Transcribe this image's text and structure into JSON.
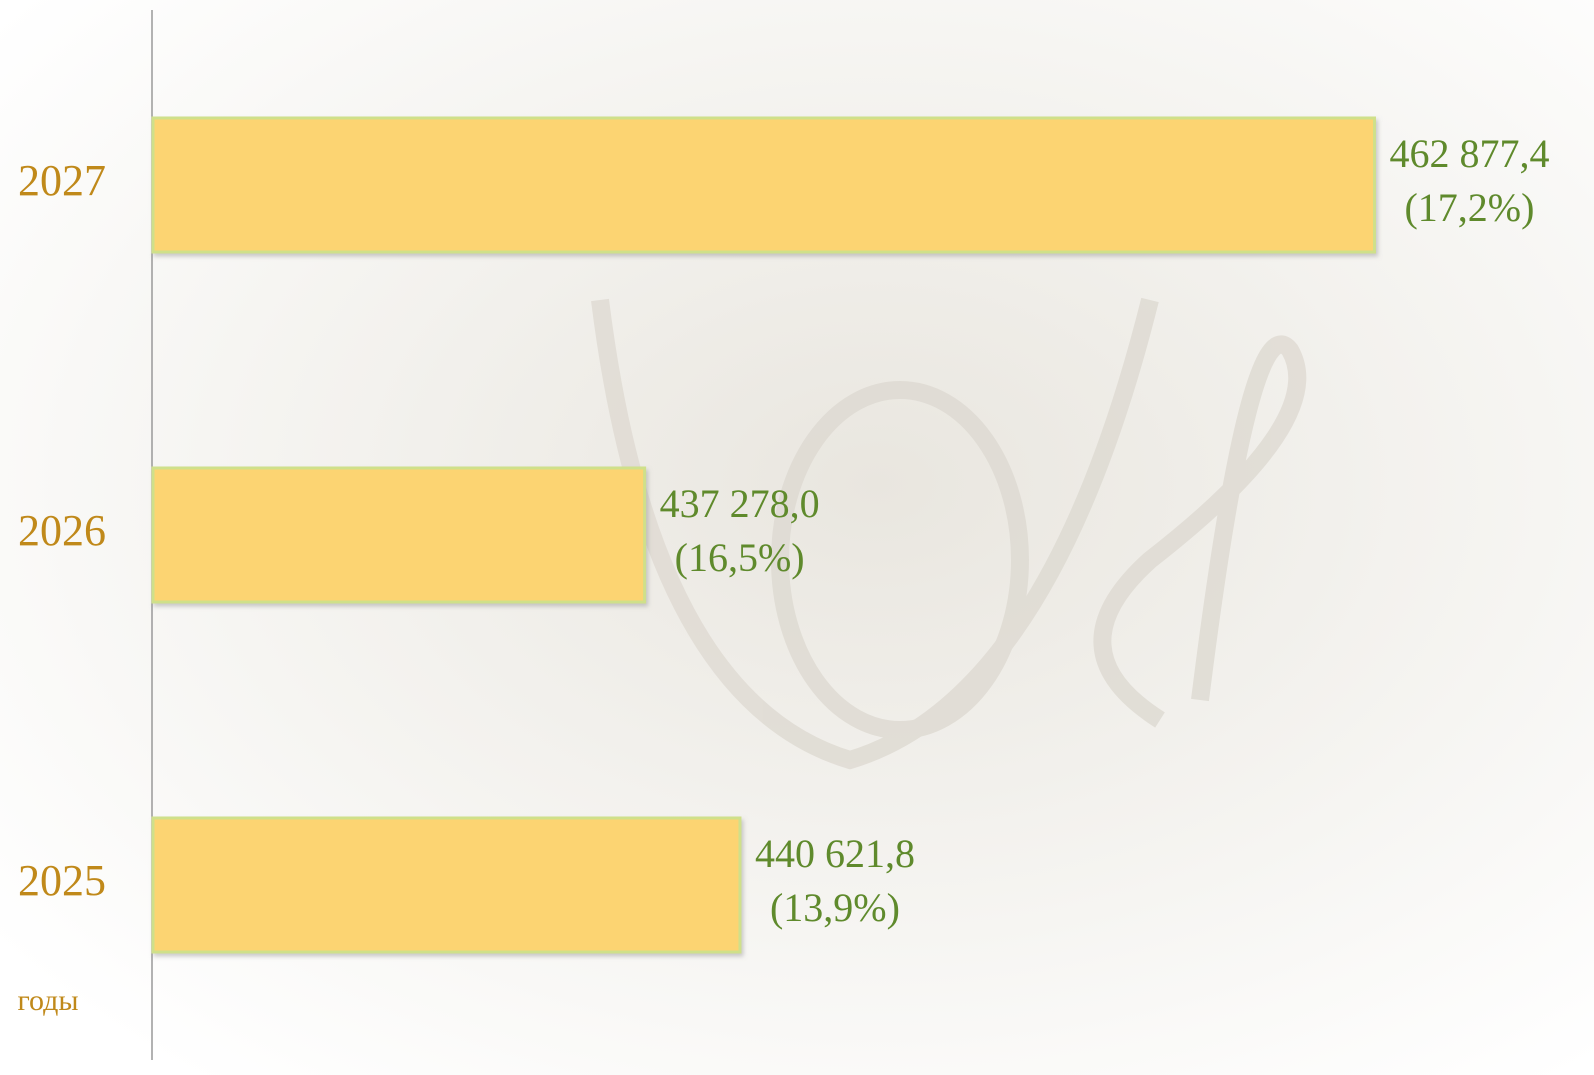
{
  "chart_data": {
    "type": "barh",
    "categories": [
      "2025",
      "2026",
      "2027"
    ],
    "values": [
      440621.8,
      437278.0,
      462877.4
    ],
    "value_labels": [
      "440 621,8",
      "437 278,0",
      "462 877,4"
    ],
    "share_labels": [
      "(13,9%)",
      "(16,5%)",
      "(17,2%)"
    ],
    "ylabel": "годы",
    "color": "#fcd472",
    "xlim": [
      420000,
      465000
    ]
  }
}
